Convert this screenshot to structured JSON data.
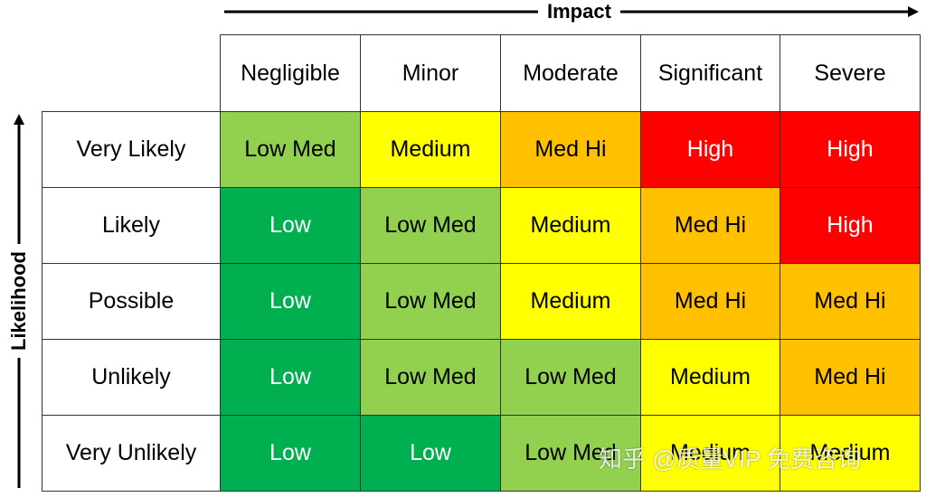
{
  "axis_x_label": "Impact",
  "axis_y_label": "Likelihood",
  "columns": [
    "Negligible",
    "Minor",
    "Moderate",
    "Significant",
    "Severe"
  ],
  "rows": [
    {
      "label": "Very Likely",
      "cells": [
        "Low Med",
        "Medium",
        "Med Hi",
        "High",
        "High"
      ]
    },
    {
      "label": "Likely",
      "cells": [
        "Low",
        "Low Med",
        "Medium",
        "Med Hi",
        "High"
      ]
    },
    {
      "label": "Possible",
      "cells": [
        "Low",
        "Low Med",
        "Medium",
        "Med Hi",
        "Med Hi"
      ]
    },
    {
      "label": "Unlikely",
      "cells": [
        "Low",
        "Low Med",
        "Low Med",
        "Medium",
        "Med Hi"
      ]
    },
    {
      "label": "Very Unlikely",
      "cells": [
        "Low",
        "Low",
        "Low Med",
        "Medium",
        "Medium"
      ]
    }
  ],
  "level_styles": {
    "Low": {
      "color": "#00b050",
      "text_color": "#ffffff"
    },
    "Low Med": {
      "color": "#92d050",
      "text_color": "#000000"
    },
    "Medium": {
      "color": "#ffff00",
      "text_color": "#000000"
    },
    "Med Hi": {
      "color": "#ffc000",
      "text_color": "#000000"
    },
    "High": {
      "color": "#ff0000",
      "text_color": "#ffffff"
    }
  },
  "watermark": "知乎 @质量VIP 免费咨询"
}
